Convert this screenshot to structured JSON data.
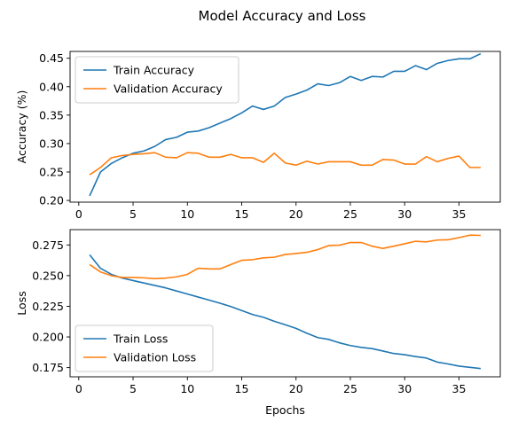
{
  "figure": {
    "title": "Model Accuracy and Loss"
  },
  "colors": {
    "train": "#1f77b4",
    "validation": "#ff7f0e"
  },
  "chart_data": [
    {
      "type": "line",
      "title": "",
      "xlabel": "",
      "ylabel": "Accuracy (%)",
      "xlim": [
        -0.8,
        38.8
      ],
      "ylim": [
        0.197,
        0.462
      ],
      "xticks": [
        0,
        5,
        10,
        15,
        20,
        25,
        30,
        35
      ],
      "yticks": [
        0.2,
        0.25,
        0.3,
        0.35,
        0.4,
        0.45
      ],
      "ytick_labels": [
        "0.20",
        "0.25",
        "0.30",
        "0.35",
        "0.40",
        "0.45"
      ],
      "legend_position": "upper-left",
      "grid": false,
      "x": [
        1,
        2,
        3,
        4,
        5,
        6,
        7,
        8,
        9,
        10,
        11,
        12,
        13,
        14,
        15,
        16,
        17,
        18,
        19,
        20,
        21,
        22,
        23,
        24,
        25,
        26,
        27,
        28,
        29,
        30,
        31,
        32,
        33,
        34,
        35,
        36,
        37
      ],
      "series": [
        {
          "name": "Train Accuracy",
          "color": "#1f77b4",
          "values": [
            0.208,
            0.25,
            0.265,
            0.275,
            0.283,
            0.287,
            0.295,
            0.307,
            0.311,
            0.32,
            0.322,
            0.328,
            0.336,
            0.344,
            0.354,
            0.366,
            0.36,
            0.366,
            0.381,
            0.387,
            0.394,
            0.405,
            0.402,
            0.407,
            0.418,
            0.411,
            0.418,
            0.417,
            0.427,
            0.427,
            0.437,
            0.43,
            0.441,
            0.446,
            0.449,
            0.449,
            0.458
          ]
        },
        {
          "name": "Validation Accuracy",
          "color": "#ff7f0e",
          "values": [
            0.245,
            0.258,
            0.275,
            0.279,
            0.281,
            0.282,
            0.284,
            0.276,
            0.275,
            0.284,
            0.283,
            0.276,
            0.276,
            0.281,
            0.275,
            0.275,
            0.267,
            0.283,
            0.266,
            0.262,
            0.269,
            0.264,
            0.268,
            0.268,
            0.268,
            0.262,
            0.262,
            0.272,
            0.271,
            0.264,
            0.264,
            0.277,
            0.268,
            0.274,
            0.278,
            0.258,
            0.258
          ]
        }
      ]
    },
    {
      "type": "line",
      "title": "",
      "xlabel": "Epochs",
      "ylabel": "Loss",
      "xlim": [
        -0.8,
        38.8
      ],
      "ylim": [
        0.1675,
        0.2875
      ],
      "xticks": [
        0,
        5,
        10,
        15,
        20,
        25,
        30,
        35
      ],
      "yticks": [
        0.175,
        0.2,
        0.225,
        0.25,
        0.275
      ],
      "ytick_labels": [
        "0.175",
        "0.200",
        "0.225",
        "0.250",
        "0.275"
      ],
      "legend_position": "lower-left",
      "grid": false,
      "x": [
        1,
        2,
        3,
        4,
        5,
        6,
        7,
        8,
        9,
        10,
        11,
        12,
        13,
        14,
        15,
        16,
        17,
        18,
        19,
        20,
        21,
        22,
        23,
        24,
        25,
        26,
        27,
        28,
        29,
        30,
        31,
        32,
        33,
        34,
        35,
        36,
        37
      ],
      "series": [
        {
          "name": "Train Loss",
          "color": "#1f77b4",
          "values": [
            0.267,
            0.256,
            0.251,
            0.248,
            0.246,
            0.244,
            0.242,
            0.24,
            0.2375,
            0.235,
            0.2325,
            0.23,
            0.2275,
            0.2248,
            0.2215,
            0.2183,
            0.216,
            0.2128,
            0.21,
            0.207,
            0.203,
            0.1995,
            0.198,
            0.1952,
            0.193,
            0.1915,
            0.1905,
            0.1885,
            0.1865,
            0.1855,
            0.184,
            0.1828,
            0.1795,
            0.178,
            0.1762,
            0.1752,
            0.1742
          ]
        },
        {
          "name": "Validation Loss",
          "color": "#ff7f0e",
          "values": [
            0.259,
            0.253,
            0.25,
            0.2485,
            0.2485,
            0.2482,
            0.2475,
            0.248,
            0.249,
            0.251,
            0.256,
            0.2555,
            0.2555,
            0.259,
            0.2625,
            0.263,
            0.2645,
            0.265,
            0.2672,
            0.268,
            0.269,
            0.2712,
            0.2745,
            0.2748,
            0.277,
            0.277,
            0.274,
            0.2722,
            0.274,
            0.276,
            0.278,
            0.2775,
            0.279,
            0.2792,
            0.281,
            0.283,
            0.2828
          ]
        }
      ]
    }
  ]
}
